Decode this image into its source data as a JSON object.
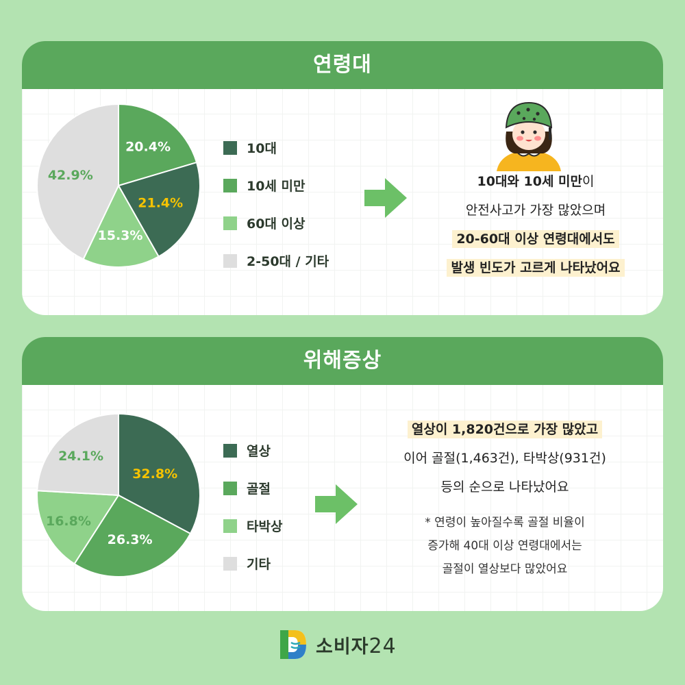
{
  "colors": {
    "dark": "#3c6b54",
    "mid": "#5aa85c",
    "light": "#8fd28a",
    "gray": "#dedede",
    "accent": "#f6c300",
    "green_text": "#5aa85c"
  },
  "section1": {
    "title": "연령대",
    "legend": [
      "10대",
      "10세 미만",
      "60대 이상",
      "2-50대 / 기타"
    ],
    "desc": {
      "l1_bold": "10대와 10세 미만",
      "l1_rest": "이",
      "l2": "안전사고가 가장 많았으며",
      "l3": "20-60대 이상 연령대에서도",
      "l4": "발생 빈도가 고르게 나타났어요"
    }
  },
  "section2": {
    "title": "위해증상",
    "legend": [
      "열상",
      "골절",
      "타박상",
      "기타"
    ],
    "desc": {
      "l1": "열상이 1,820건으로 가장 많았고",
      "l2": "이어 골절(1,463건), 타박상(931건)",
      "l3": "등의 순으로 나타났어요",
      "n1": "* 연령이 높아질수록 골절 비율이",
      "n2": "증가해 40대 이상 연령대에서는",
      "n3": "골절이 열상보다 많았어요"
    }
  },
  "chart_data": [
    {
      "type": "pie",
      "title": "연령대",
      "labels": [
        "10세 미만",
        "10대",
        "60대 이상",
        "2-50대 / 기타"
      ],
      "values": [
        20.4,
        21.4,
        15.3,
        42.9
      ],
      "value_labels": [
        "20.4%",
        "21.4%",
        "15.3%",
        "42.9%"
      ],
      "colors": [
        "#5aa85c",
        "#3c6b54",
        "#8fd28a",
        "#dedede"
      ],
      "label_colors": [
        "#ffffff",
        "#f6c300",
        "#ffffff",
        "#5aa85c"
      ],
      "legend_placement": "right"
    },
    {
      "type": "pie",
      "title": "위해증상",
      "labels": [
        "열상",
        "골절",
        "타박상",
        "기타"
      ],
      "values": [
        32.8,
        26.3,
        16.8,
        24.1
      ],
      "value_labels": [
        "32.8%",
        "26.3%",
        "16.8%",
        "24.1%"
      ],
      "colors": [
        "#3c6b54",
        "#5aa85c",
        "#8fd28a",
        "#dedede"
      ],
      "label_colors": [
        "#f6c300",
        "#ffffff",
        "#5aa85c",
        "#5aa85c"
      ],
      "legend_placement": "right"
    }
  ],
  "logo": {
    "name": "소비자",
    "num": "24",
    "icon": "consumer24-logo-icon"
  }
}
